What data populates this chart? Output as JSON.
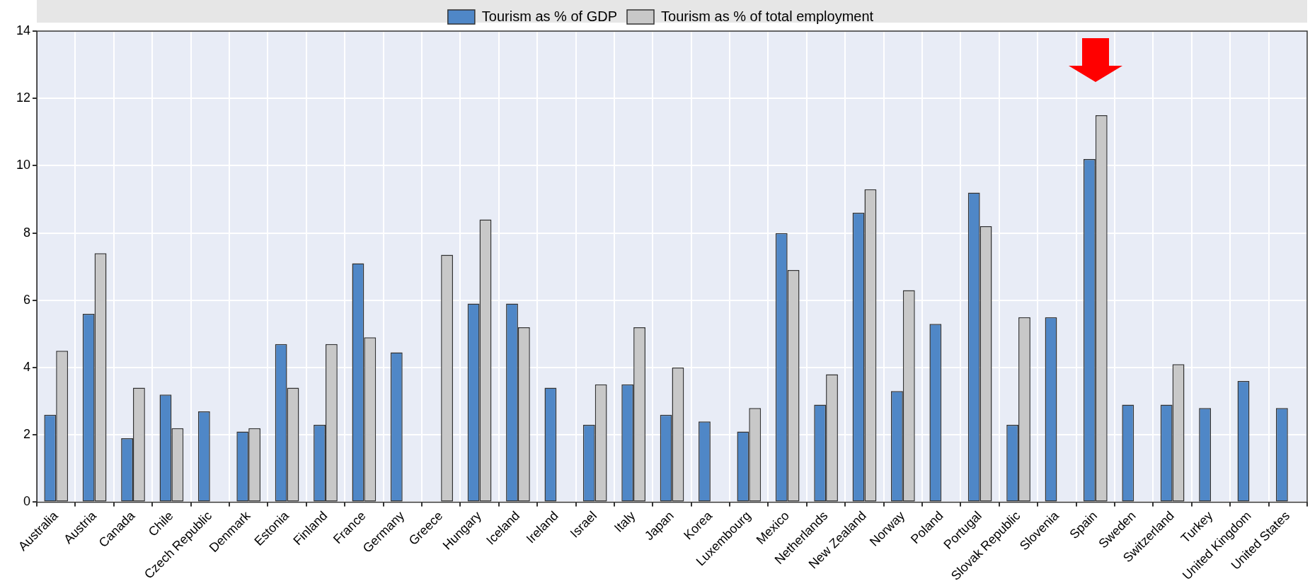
{
  "chart_data": {
    "type": "bar",
    "categories": [
      "Australia",
      "Austria",
      "Canada",
      "Chile",
      "Czech Republic",
      "Denmark",
      "Estonia",
      "Finland",
      "France",
      "Germany",
      "Greece",
      "Hungary",
      "Iceland",
      "Ireland",
      "Israel",
      "Italy",
      "Japan",
      "Korea",
      "Luxembourg",
      "Mexico",
      "Netherlands",
      "New Zealand",
      "Norway",
      "Poland",
      "Portugal",
      "Slovak Republic",
      "Slovenia",
      "Spain",
      "Sweden",
      "Switzerland",
      "Turkey",
      "United Kingdom",
      "United States"
    ],
    "series": [
      {
        "name": "Tourism as % of GDP",
        "color": "#4f87c7",
        "values": [
          2.6,
          5.6,
          1.9,
          3.2,
          2.7,
          2.1,
          4.7,
          2.3,
          7.1,
          4.45,
          null,
          5.9,
          5.9,
          3.4,
          2.3,
          3.5,
          2.6,
          2.4,
          2.1,
          8.0,
          2.9,
          8.6,
          3.3,
          5.3,
          9.2,
          2.3,
          5.5,
          10.2,
          2.9,
          2.9,
          2.8,
          3.6,
          2.8
        ]
      },
      {
        "name": "Tourism as % of total employment",
        "color": "#c8c8c8",
        "values": [
          4.5,
          7.4,
          3.4,
          2.2,
          null,
          2.2,
          3.4,
          4.7,
          4.9,
          null,
          7.35,
          8.4,
          5.2,
          null,
          3.5,
          5.2,
          4.0,
          null,
          2.8,
          6.9,
          3.8,
          9.3,
          6.3,
          null,
          8.2,
          5.5,
          null,
          11.5,
          null,
          4.1,
          null,
          null,
          null
        ]
      }
    ],
    "ylim": [
      0,
      14
    ],
    "yticks": [
      0,
      2,
      4,
      6,
      8,
      10,
      12,
      14
    ],
    "grid": true,
    "legend": "top"
  }
}
